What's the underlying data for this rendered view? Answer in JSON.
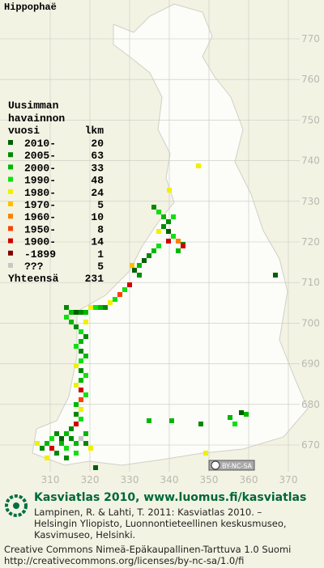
{
  "title": "Hippophaë",
  "legend": {
    "header": [
      "Uusimman",
      "havainnon",
      "vuosi",
      "lkm"
    ],
    "items": [
      {
        "label": "2010-",
        "count": 20,
        "color": "#006000"
      },
      {
        "label": "2005-",
        "count": 63,
        "color": "#008a00"
      },
      {
        "label": "2000-",
        "count": 33,
        "color": "#00b800"
      },
      {
        "label": "1990-",
        "count": 48,
        "color": "#10e010"
      },
      {
        "label": "1980-",
        "count": 24,
        "color": "#f0f000"
      },
      {
        "label": "1970-",
        "count": 5,
        "color": "#ffc000"
      },
      {
        "label": "1960-",
        "count": 10,
        "color": "#ff8000"
      },
      {
        "label": "1950-",
        "count": 8,
        "color": "#ff4000"
      },
      {
        "label": "1900-",
        "count": 14,
        "color": "#d00000"
      },
      {
        "label": "-1899",
        "count": 1,
        "color": "#800000"
      },
      {
        "label": "???",
        "count": 5,
        "color": "#c8c8c8"
      }
    ],
    "total_label": "Yhteensä",
    "total": 231
  },
  "grid": {
    "y_labels": [
      770,
      760,
      750,
      740,
      730,
      720,
      710,
      700,
      690,
      680,
      670
    ],
    "x_labels": [
      310,
      320,
      330,
      340,
      350,
      360,
      370
    ]
  },
  "license_badge": "BY-NC-SA",
  "footer": {
    "headline": "Kasviatlas 2010, www.luomus.fi/kasviatlas",
    "citation": [
      "Lampinen, R. & Lahti, T. 2011: Kasviatlas 2010. –",
      "Helsingin Yliopisto, Luonnontieteellinen keskusmuseo,",
      "Kasvimuseo, Helsinki."
    ],
    "license": [
      "Creative Commons Nimeä-Epäkaupallinen-Tarttuva 1.0 Suomi",
      "http://creativecommons.org/licenses/by-nc-sa/1.0/fi"
    ]
  }
}
